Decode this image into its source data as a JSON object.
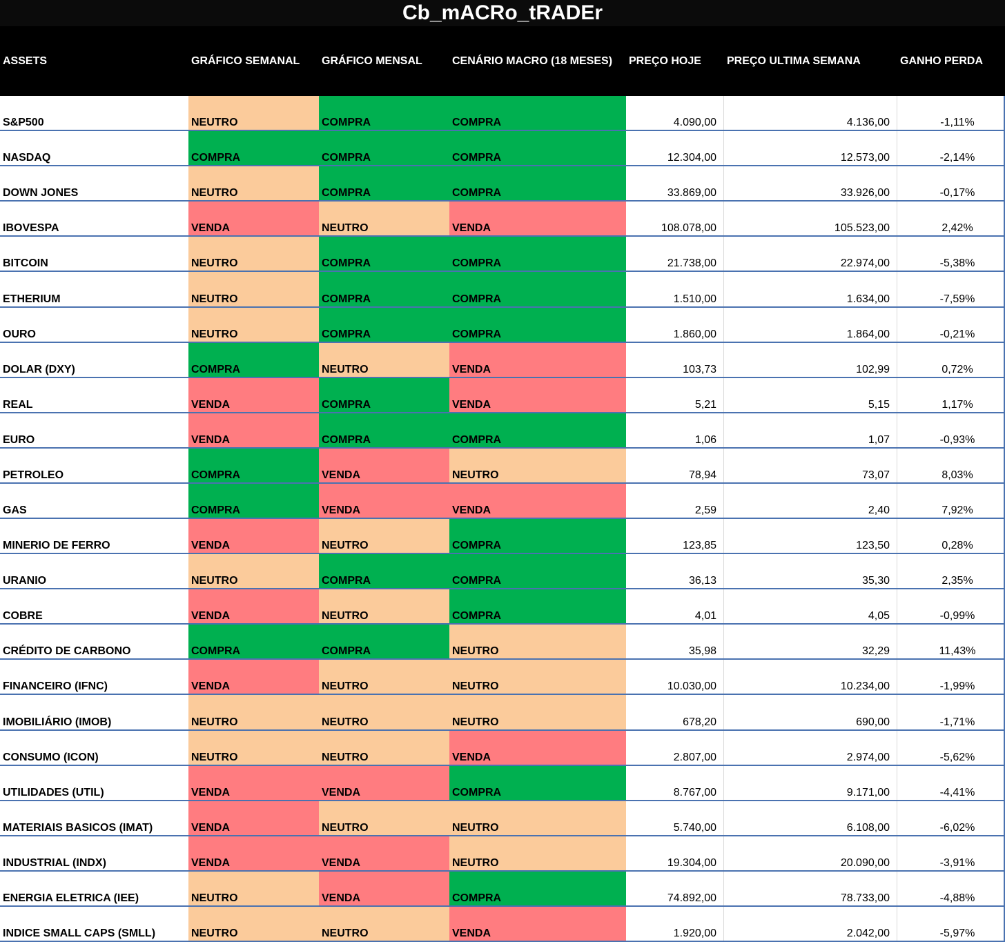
{
  "title": "Cb_mACRo_tRADEr",
  "headers": {
    "assets": "ASSETS",
    "weekly": "GRÁFICO SEMANAL",
    "monthly": "GRÁFICO MENSAL",
    "macro": "CENÁRIO MACRO (18 MESES)",
    "price_today": "PREÇO HOJE",
    "price_last_week": "PREÇO ULTIMA SEMANA",
    "gain_loss": "GANHO PERDA"
  },
  "signal_colors": {
    "COMPRA": "#00b050",
    "NEUTRO": "#fbcb9b",
    "VENDA": "#ff7c80"
  },
  "rows": [
    {
      "asset": "S&P500",
      "weekly": "NEUTRO",
      "monthly": "COMPRA",
      "macro": "COMPRA",
      "price_today": "4.090,00",
      "price_last_week": "4.136,00",
      "change": "-1,11%"
    },
    {
      "asset": "NASDAQ",
      "weekly": "COMPRA",
      "monthly": "COMPRA",
      "macro": "COMPRA",
      "price_today": "12.304,00",
      "price_last_week": "12.573,00",
      "change": "-2,14%"
    },
    {
      "asset": "DOWN JONES",
      "weekly": "NEUTRO",
      "monthly": "COMPRA",
      "macro": "COMPRA",
      "price_today": "33.869,00",
      "price_last_week": "33.926,00",
      "change": "-0,17%"
    },
    {
      "asset": "IBOVESPA",
      "weekly": "VENDA",
      "monthly": "NEUTRO",
      "macro": "VENDA",
      "price_today": "108.078,00",
      "price_last_week": "105.523,00",
      "change": "2,42%"
    },
    {
      "asset": "BITCOIN",
      "weekly": "NEUTRO",
      "monthly": "COMPRA",
      "macro": "COMPRA",
      "price_today": "21.738,00",
      "price_last_week": "22.974,00",
      "change": "-5,38%"
    },
    {
      "asset": "ETHERIUM",
      "weekly": "NEUTRO",
      "monthly": "COMPRA",
      "macro": "COMPRA",
      "price_today": "1.510,00",
      "price_last_week": "1.634,00",
      "change": "-7,59%"
    },
    {
      "asset": "OURO",
      "weekly": "NEUTRO",
      "monthly": "COMPRA",
      "macro": "COMPRA",
      "price_today": "1.860,00",
      "price_last_week": "1.864,00",
      "change": "-0,21%"
    },
    {
      "asset": "DOLAR (DXY)",
      "weekly": "COMPRA",
      "monthly": "NEUTRO",
      "macro": "VENDA",
      "price_today": "103,73",
      "price_last_week": "102,99",
      "change": "0,72%"
    },
    {
      "asset": "REAL",
      "weekly": "VENDA",
      "monthly": "COMPRA",
      "macro": "VENDA",
      "price_today": "5,21",
      "price_last_week": "5,15",
      "change": "1,17%"
    },
    {
      "asset": "EURO",
      "weekly": "VENDA",
      "monthly": "COMPRA",
      "macro": "COMPRA",
      "price_today": "1,06",
      "price_last_week": "1,07",
      "change": "-0,93%"
    },
    {
      "asset": "PETROLEO",
      "weekly": "COMPRA",
      "monthly": "VENDA",
      "macro": "NEUTRO",
      "price_today": "78,94",
      "price_last_week": "73,07",
      "change": "8,03%"
    },
    {
      "asset": "GAS",
      "weekly": "COMPRA",
      "monthly": "VENDA",
      "macro": "VENDA",
      "price_today": "2,59",
      "price_last_week": "2,40",
      "change": "7,92%"
    },
    {
      "asset": "MINERIO DE FERRO",
      "weekly": "VENDA",
      "monthly": "NEUTRO",
      "macro": "COMPRA",
      "price_today": "123,85",
      "price_last_week": "123,50",
      "change": "0,28%"
    },
    {
      "asset": "URANIO",
      "weekly": "NEUTRO",
      "monthly": "COMPRA",
      "macro": "COMPRA",
      "price_today": "36,13",
      "price_last_week": "35,30",
      "change": "2,35%"
    },
    {
      "asset": "COBRE",
      "weekly": "VENDA",
      "monthly": "NEUTRO",
      "macro": "COMPRA",
      "price_today": "4,01",
      "price_last_week": "4,05",
      "change": "-0,99%"
    },
    {
      "asset": "CRÉDITO DE CARBONO",
      "weekly": "COMPRA",
      "monthly": "COMPRA",
      "macro": "NEUTRO",
      "price_today": "35,98",
      "price_last_week": "32,29",
      "change": "11,43%"
    },
    {
      "asset": "FINANCEIRO (IFNC)",
      "weekly": "VENDA",
      "monthly": "NEUTRO",
      "macro": "NEUTRO",
      "price_today": "10.030,00",
      "price_last_week": "10.234,00",
      "change": "-1,99%"
    },
    {
      "asset": "IMOBILIÁRIO (IMOB)",
      "weekly": "NEUTRO",
      "monthly": "NEUTRO",
      "macro": "NEUTRO",
      "price_today": "678,20",
      "price_last_week": "690,00",
      "change": "-1,71%"
    },
    {
      "asset": "CONSUMO (ICON)",
      "weekly": "NEUTRO",
      "monthly": "NEUTRO",
      "macro": "VENDA",
      "price_today": "2.807,00",
      "price_last_week": "2.974,00",
      "change": "-5,62%"
    },
    {
      "asset": "UTILIDADES (UTIL)",
      "weekly": "VENDA",
      "monthly": "VENDA",
      "macro": "COMPRA",
      "price_today": "8.767,00",
      "price_last_week": "9.171,00",
      "change": "-4,41%"
    },
    {
      "asset": "MATERIAIS BASICOS (IMAT)",
      "weekly": "VENDA",
      "monthly": "NEUTRO",
      "macro": "NEUTRO",
      "price_today": "5.740,00",
      "price_last_week": "6.108,00",
      "change": "-6,02%"
    },
    {
      "asset": "INDUSTRIAL (INDX)",
      "weekly": "VENDA",
      "monthly": "VENDA",
      "macro": "NEUTRO",
      "price_today": "19.304,00",
      "price_last_week": "20.090,00",
      "change": "-3,91%"
    },
    {
      "asset": "ENERGIA ELETRICA (IEE)",
      "weekly": "NEUTRO",
      "monthly": "VENDA",
      "macro": "COMPRA",
      "price_today": "74.892,00",
      "price_last_week": "78.733,00",
      "change": "-4,88%"
    },
    {
      "asset": "INDICE SMALL CAPS (SMLL)",
      "weekly": "NEUTRO",
      "monthly": "NEUTRO",
      "macro": "VENDA",
      "price_today": "1.920,00",
      "price_last_week": "2.042,00",
      "change": "-5,97%"
    }
  ]
}
